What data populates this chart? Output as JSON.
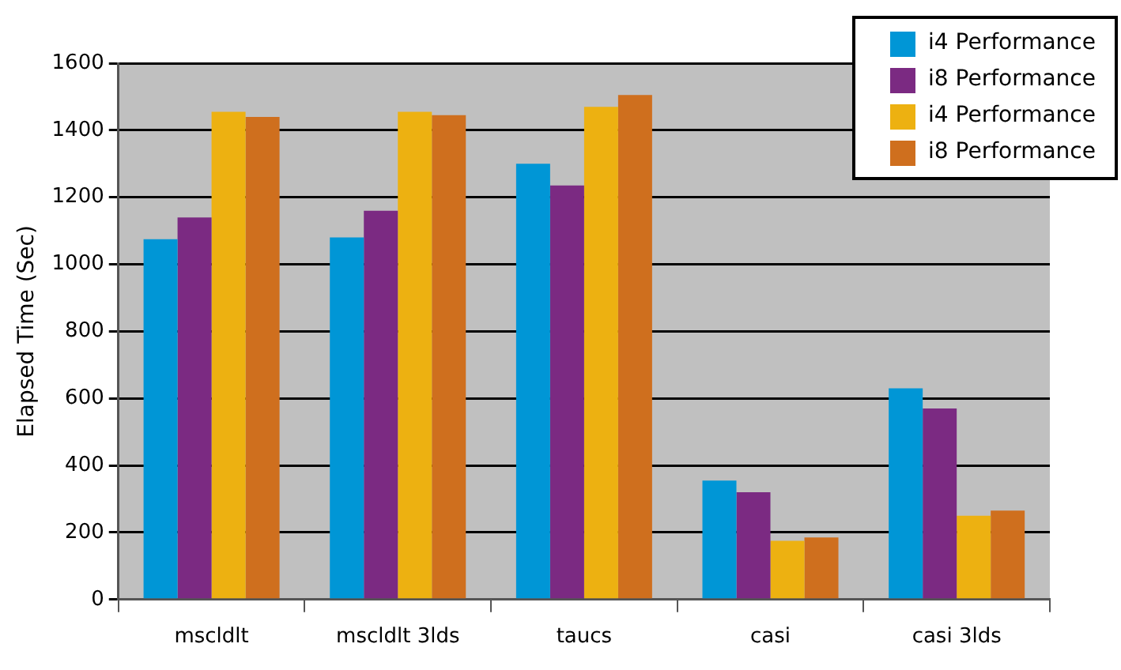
{
  "chart_data": {
    "type": "bar",
    "ylabel": "Elapsed Time (Sec)",
    "categories": [
      "mscldlt",
      "mscldlt 3lds",
      "taucs",
      "casi",
      "casi 3lds"
    ],
    "series": [
      {
        "name": "i4 Performance",
        "color": "#0096d6",
        "values": [
          1075,
          1080,
          1300,
          355,
          630
        ]
      },
      {
        "name": "i8 Performance",
        "color": "#7b2a82",
        "values": [
          1140,
          1160,
          1235,
          320,
          570
        ]
      },
      {
        "name": "i4 Performance",
        "color": "#edb111",
        "values": [
          1455,
          1455,
          1470,
          175,
          250
        ]
      },
      {
        "name": "i8 Performance",
        "color": "#cf6f1e",
        "values": [
          1440,
          1445,
          1505,
          185,
          265
        ]
      }
    ],
    "ylim": [
      0,
      1600
    ],
    "yticks": [
      0,
      200,
      400,
      600,
      800,
      1000,
      1200,
      1400,
      1600
    ],
    "grid": "y",
    "legend": "top right"
  }
}
